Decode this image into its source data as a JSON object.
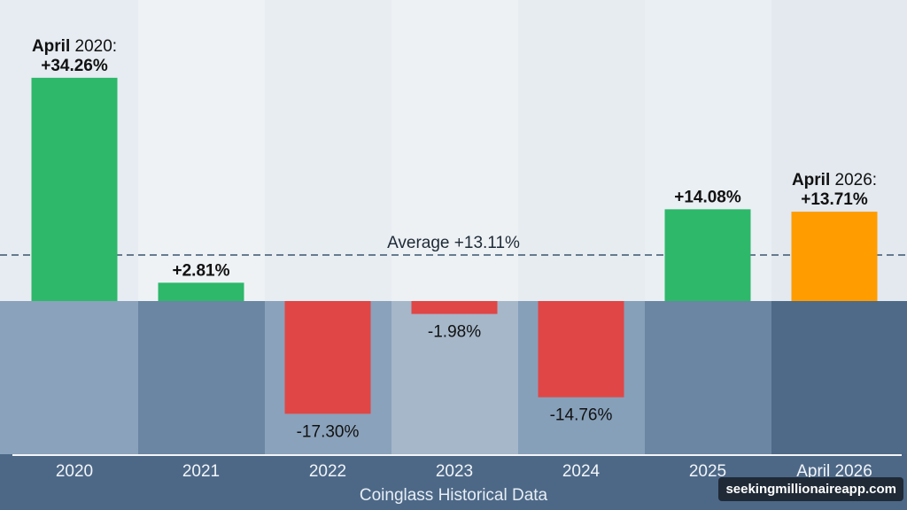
{
  "chart_data": {
    "type": "bar",
    "title": "",
    "xlabel": "Coinglass Historical Data",
    "ylabel": "",
    "categories": [
      "2020",
      "2021",
      "2022",
      "2023",
      "2024",
      "2025",
      "April 2026"
    ],
    "values": [
      34.26,
      2.81,
      -17.3,
      -1.98,
      -14.76,
      14.08,
      13.71
    ],
    "data_labels": [
      "+34.26%",
      "+2.81%",
      "-17.30%",
      "-1.98%",
      "-14.76%",
      "+14.08%",
      "+13.71%"
    ],
    "label_prefixes": [
      "April 2020:",
      "",
      "",
      "",
      "",
      "",
      "April 2026:"
    ],
    "average": {
      "value": 13.11,
      "label": "Average +13.11%"
    },
    "grid": false,
    "legend": "none",
    "colors": {
      "positive": "#2db86a",
      "negative": "#e04646",
      "highlight": "#ff9c00",
      "average_line": "#3c556e"
    }
  },
  "watermark": "seekingmillionaireapp.com"
}
